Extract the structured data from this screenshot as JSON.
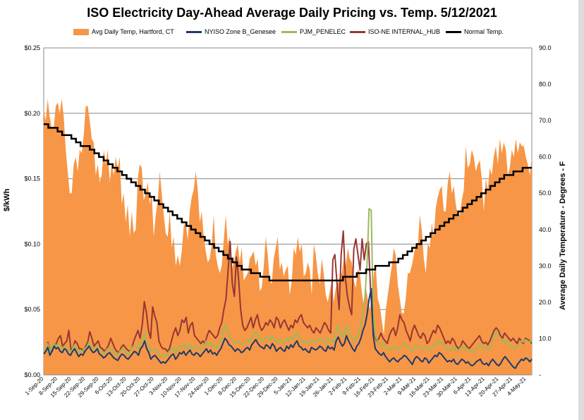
{
  "chart_data": {
    "type": "line",
    "title": "ISO Electricity Day-Ahead Average Daily Pricing vs. Temp. 5/12/2021",
    "ylabel_left": "$/kWh",
    "ylabel_right": "Average Daily Temperature - Degrees - F",
    "ylim_left": [
      0,
      0.25
    ],
    "ylim_right": [
      0,
      90
    ],
    "left_ticks": [
      "$0.00",
      "$0.05",
      "$0.10",
      "$0.15",
      "$0.20",
      "$0.25"
    ],
    "right_ticks": [
      "-",
      "10.0",
      "20.0",
      "30.0",
      "40.0",
      "50.0",
      "60.0",
      "70.0",
      "80.0",
      "90.0"
    ],
    "x_labels": [
      "1-Sep-20",
      "8-Sep-20",
      "15-Sep-20",
      "22-Sep-20",
      "29-Sep-20",
      "6-Oct-20",
      "13-Oct-20",
      "20-Oct-20",
      "27-Oct-20",
      "3-Nov-20",
      "10-Nov-20",
      "17-Nov-20",
      "24-Nov-20",
      "1-Dec-20",
      "8-Dec-20",
      "15-Dec-20",
      "22-Dec-20",
      "29-Dec-20",
      "5-Jan-21",
      "12-Jan-21",
      "19-Jan-21",
      "26-Jan-21",
      "2-Feb-21",
      "9-Feb-21",
      "16-Feb-21",
      "23-Feb-21",
      "2-Mar-21",
      "9-Mar-21",
      "16-Mar-21",
      "23-Mar-21",
      "30-Mar-21",
      "6-Apr-21",
      "13-Apr-21",
      "20-Apr-21",
      "27-Apr-21",
      "4-May-21"
    ],
    "grid": "horizontal",
    "legend_position": "top",
    "colors": {
      "temp": "#f79646",
      "nyiso": "#1f3a68",
      "pjm": "#9bbb59",
      "isone": "#953735",
      "normal": "#000000"
    },
    "series": [
      {
        "name": "Avg Daily Temp, Hartford, CT",
        "axis": "right",
        "kind": "area",
        "values": [
          73,
          70,
          76,
          71,
          68,
          68,
          74,
          75,
          72,
          76,
          71,
          62,
          56,
          50,
          50,
          58,
          60,
          56,
          62,
          61,
          66,
          74,
          74,
          70,
          65,
          64,
          55,
          58,
          53,
          55,
          62,
          58,
          62,
          53,
          58,
          55,
          60,
          57,
          60,
          47,
          50,
          42,
          47,
          38,
          45,
          39,
          40,
          54,
          58,
          57,
          48,
          50,
          53,
          47,
          50,
          38,
          44,
          48,
          56,
          50,
          44,
          39,
          38,
          45,
          35,
          38,
          30,
          33,
          30,
          34,
          41,
          42,
          37,
          45,
          49,
          51,
          56,
          51,
          42,
          45,
          38,
          34,
          31,
          32,
          36,
          44,
          33,
          30,
          28,
          30,
          37,
          44,
          36,
          38,
          29,
          31,
          34,
          36,
          31,
          35,
          26,
          27,
          28,
          32,
          33,
          34,
          30,
          32,
          23,
          24,
          30,
          38,
          33,
          26,
          25,
          32,
          35,
          38,
          29,
          31,
          27,
          29,
          30,
          22,
          26,
          35,
          33,
          38,
          34,
          36,
          27,
          28,
          31,
          29,
          22,
          36,
          33,
          28,
          25,
          32,
          28,
          22,
          20,
          23,
          26,
          20,
          24,
          25,
          27,
          28,
          32,
          30,
          35,
          32,
          31,
          26,
          24,
          29,
          28,
          23,
          19,
          24,
          21,
          18,
          21,
          28,
          30,
          21,
          19,
          15,
          11,
          18,
          22,
          26,
          30,
          35,
          33,
          25,
          21,
          17,
          17,
          21,
          28,
          28,
          30,
          33,
          36,
          35,
          44,
          40,
          32,
          28,
          36,
          35,
          42,
          38,
          46,
          49,
          51,
          52,
          45,
          45,
          53,
          56,
          50,
          52,
          47,
          44,
          44,
          48,
          51,
          63,
          57,
          58,
          62,
          60,
          56,
          58,
          59,
          54,
          45,
          54,
          51,
          57,
          55,
          60,
          63,
          58,
          65,
          61,
          64,
          62,
          55,
          57,
          62,
          60,
          65,
          61,
          64,
          63,
          63,
          60,
          58,
          55,
          60
        ],
        "source_note": "values in degrees F"
      },
      {
        "name": "NYISO Zone B_Genesee",
        "axis": "left",
        "kind": "line"
      },
      {
        "name": "PJM_PENELEC",
        "axis": "left",
        "kind": "line"
      },
      {
        "name": "ISO-NE INTERNAL_HUB",
        "axis": "left",
        "kind": "line"
      },
      {
        "name": "Normal Temp.",
        "axis": "right",
        "kind": "line"
      }
    ],
    "price_series": {
      "nyiso": [
        0.016,
        0.018,
        0.021,
        0.015,
        0.018,
        0.022,
        0.02,
        0.021,
        0.018,
        0.017,
        0.02,
        0.019,
        0.016,
        0.015,
        0.018,
        0.02,
        0.017,
        0.014,
        0.016,
        0.015,
        0.018,
        0.02,
        0.022,
        0.019,
        0.017,
        0.018,
        0.02,
        0.016,
        0.015,
        0.013,
        0.014,
        0.016,
        0.017,
        0.015,
        0.013,
        0.012,
        0.011,
        0.014,
        0.016,
        0.015,
        0.013,
        0.012,
        0.014,
        0.016,
        0.018,
        0.017,
        0.015,
        0.02,
        0.022,
        0.026,
        0.02,
        0.017,
        0.012,
        0.014,
        0.015,
        0.013,
        0.011,
        0.009,
        0.01,
        0.009,
        0.011,
        0.013,
        0.015,
        0.016,
        0.012,
        0.014,
        0.017,
        0.016,
        0.018,
        0.015,
        0.017,
        0.019,
        0.016,
        0.015,
        0.017,
        0.016,
        0.014,
        0.016,
        0.018,
        0.02,
        0.017,
        0.019,
        0.016,
        0.017,
        0.015,
        0.018,
        0.02,
        0.024,
        0.028,
        0.026,
        0.023,
        0.022,
        0.02,
        0.018,
        0.02,
        0.019,
        0.017,
        0.018,
        0.02,
        0.021,
        0.019,
        0.023,
        0.025,
        0.027,
        0.024,
        0.022,
        0.021,
        0.02,
        0.023,
        0.022,
        0.02,
        0.024,
        0.022,
        0.018,
        0.02,
        0.021,
        0.019,
        0.018,
        0.022,
        0.02,
        0.023,
        0.021,
        0.024,
        0.026,
        0.022,
        0.021,
        0.019,
        0.02,
        0.018,
        0.017,
        0.021,
        0.02,
        0.019,
        0.02,
        0.022,
        0.021,
        0.019,
        0.018,
        0.022,
        0.02,
        0.021,
        0.019,
        0.026,
        0.029,
        0.025,
        0.022,
        0.024,
        0.03,
        0.026,
        0.023,
        0.02,
        0.018,
        0.022,
        0.024,
        0.028,
        0.034,
        0.038,
        0.046,
        0.058,
        0.066,
        0.03,
        0.02,
        0.018,
        0.016,
        0.015,
        0.017,
        0.014,
        0.012,
        0.01,
        0.012,
        0.013,
        0.011,
        0.01,
        0.012,
        0.013,
        0.015,
        0.014,
        0.012,
        0.01,
        0.008,
        0.012,
        0.014,
        0.013,
        0.011,
        0.01,
        0.013,
        0.012,
        0.009,
        0.011,
        0.013,
        0.015,
        0.014,
        0.017,
        0.016,
        0.014,
        0.012,
        0.01,
        0.011,
        0.01,
        0.012,
        0.009,
        0.008,
        0.01,
        0.012,
        0.011,
        0.009,
        0.01,
        0.008,
        0.007,
        0.008,
        0.01,
        0.011,
        0.012,
        0.009,
        0.008,
        0.009,
        0.007,
        0.01,
        0.012,
        0.01,
        0.008,
        0.007,
        0.009,
        0.012,
        0.014,
        0.012,
        0.01,
        0.008,
        0.006,
        0.005,
        0.008,
        0.01,
        0.012,
        0.011,
        0.013,
        0.012,
        0.01,
        0.012
      ],
      "pjm": [
        0.018,
        0.02,
        0.024,
        0.018,
        0.021,
        0.024,
        0.022,
        0.023,
        0.021,
        0.02,
        0.022,
        0.021,
        0.019,
        0.017,
        0.02,
        0.023,
        0.02,
        0.017,
        0.019,
        0.018,
        0.02,
        0.022,
        0.025,
        0.022,
        0.02,
        0.021,
        0.022,
        0.019,
        0.018,
        0.016,
        0.018,
        0.02,
        0.021,
        0.019,
        0.017,
        0.016,
        0.015,
        0.018,
        0.02,
        0.019,
        0.017,
        0.016,
        0.018,
        0.021,
        0.023,
        0.022,
        0.02,
        0.025,
        0.028,
        0.032,
        0.026,
        0.022,
        0.018,
        0.019,
        0.02,
        0.018,
        0.016,
        0.014,
        0.015,
        0.014,
        0.016,
        0.018,
        0.02,
        0.021,
        0.017,
        0.019,
        0.022,
        0.021,
        0.023,
        0.02,
        0.022,
        0.024,
        0.021,
        0.02,
        0.022,
        0.021,
        0.019,
        0.021,
        0.023,
        0.026,
        0.023,
        0.025,
        0.021,
        0.022,
        0.021,
        0.024,
        0.026,
        0.032,
        0.038,
        0.034,
        0.03,
        0.028,
        0.026,
        0.024,
        0.026,
        0.025,
        0.023,
        0.024,
        0.026,
        0.027,
        0.025,
        0.029,
        0.031,
        0.033,
        0.03,
        0.028,
        0.027,
        0.026,
        0.029,
        0.028,
        0.026,
        0.03,
        0.028,
        0.024,
        0.026,
        0.027,
        0.025,
        0.024,
        0.028,
        0.026,
        0.029,
        0.027,
        0.03,
        0.032,
        0.028,
        0.027,
        0.025,
        0.026,
        0.024,
        0.023,
        0.027,
        0.026,
        0.025,
        0.026,
        0.028,
        0.027,
        0.025,
        0.024,
        0.028,
        0.026,
        0.027,
        0.025,
        0.033,
        0.038,
        0.032,
        0.029,
        0.031,
        0.038,
        0.034,
        0.03,
        0.027,
        0.025,
        0.029,
        0.032,
        0.038,
        0.048,
        0.06,
        0.085,
        0.127,
        0.126,
        0.045,
        0.03,
        0.026,
        0.024,
        0.022,
        0.025,
        0.022,
        0.02,
        0.019,
        0.021,
        0.022,
        0.02,
        0.019,
        0.021,
        0.022,
        0.024,
        0.023,
        0.021,
        0.019,
        0.018,
        0.021,
        0.023,
        0.022,
        0.02,
        0.019,
        0.022,
        0.021,
        0.019,
        0.02,
        0.022,
        0.024,
        0.023,
        0.026,
        0.025,
        0.023,
        0.021,
        0.019,
        0.02,
        0.019,
        0.022,
        0.019,
        0.018,
        0.02,
        0.022,
        0.021,
        0.019,
        0.02,
        0.018,
        0.017,
        0.018,
        0.02,
        0.022,
        0.024,
        0.021,
        0.02,
        0.021,
        0.019,
        0.022,
        0.025,
        0.032,
        0.034,
        0.03,
        0.028,
        0.026,
        0.024,
        0.027,
        0.024,
        0.022,
        0.021,
        0.02,
        0.022,
        0.024,
        0.026,
        0.025,
        0.027,
        0.026,
        0.025,
        0.027
      ],
      "isone": [
        0.016,
        0.018,
        0.025,
        0.019,
        0.018,
        0.022,
        0.024,
        0.028,
        0.03,
        0.022,
        0.024,
        0.026,
        0.034,
        0.019,
        0.021,
        0.026,
        0.024,
        0.02,
        0.02,
        0.018,
        0.022,
        0.025,
        0.033,
        0.028,
        0.022,
        0.024,
        0.026,
        0.021,
        0.02,
        0.018,
        0.02,
        0.023,
        0.028,
        0.024,
        0.02,
        0.018,
        0.017,
        0.021,
        0.023,
        0.021,
        0.019,
        0.018,
        0.02,
        0.026,
        0.03,
        0.034,
        0.028,
        0.038,
        0.056,
        0.048,
        0.034,
        0.028,
        0.052,
        0.045,
        0.04,
        0.026,
        0.022,
        0.02,
        0.02,
        0.018,
        0.02,
        0.026,
        0.032,
        0.036,
        0.03,
        0.034,
        0.042,
        0.04,
        0.044,
        0.032,
        0.038,
        0.04,
        0.03,
        0.028,
        0.026,
        0.024,
        0.026,
        0.024,
        0.03,
        0.034,
        0.032,
        0.03,
        0.028,
        0.03,
        0.036,
        0.04,
        0.05,
        0.058,
        0.08,
        0.102,
        0.07,
        0.06,
        0.09,
        0.074,
        0.05,
        0.038,
        0.034,
        0.036,
        0.04,
        0.044,
        0.036,
        0.042,
        0.046,
        0.038,
        0.034,
        0.036,
        0.04,
        0.038,
        0.042,
        0.04,
        0.036,
        0.044,
        0.042,
        0.036,
        0.04,
        0.042,
        0.038,
        0.034,
        0.038,
        0.036,
        0.042,
        0.04,
        0.044,
        0.046,
        0.04,
        0.038,
        0.036,
        0.038,
        0.034,
        0.032,
        0.036,
        0.034,
        0.032,
        0.036,
        0.04,
        0.038,
        0.034,
        0.032,
        0.088,
        0.092,
        0.07,
        0.05,
        0.092,
        0.11,
        0.074,
        0.06,
        0.052,
        0.046,
        0.096,
        0.104,
        0.092,
        0.08,
        0.104,
        0.088,
        0.1,
        0.102,
        0.066,
        0.04,
        0.03,
        0.026,
        0.028,
        0.032,
        0.028,
        0.026,
        0.024,
        0.03,
        0.034,
        0.036,
        0.03,
        0.036,
        0.046,
        0.042,
        0.04,
        0.034,
        0.03,
        0.026,
        0.034,
        0.038,
        0.034,
        0.03,
        0.028,
        0.032,
        0.03,
        0.024,
        0.026,
        0.03,
        0.034,
        0.032,
        0.038,
        0.036,
        0.032,
        0.028,
        0.024,
        0.026,
        0.024,
        0.028,
        0.026,
        0.022,
        0.02,
        0.022,
        0.026,
        0.024,
        0.022,
        0.02,
        0.022,
        0.024,
        0.026,
        0.028,
        0.03,
        0.026,
        0.024,
        0.025,
        0.023,
        0.026,
        0.03,
        0.034,
        0.036,
        0.034,
        0.03,
        0.028,
        0.032,
        0.03,
        0.028,
        0.026,
        0.028,
        0.026,
        0.024,
        0.028,
        0.026,
        0.024,
        0.028,
        0.027,
        0.026,
        0.024
      ]
    },
    "normal_temp": [
      69,
      68,
      68,
      67,
      66,
      66,
      65,
      64,
      63,
      63,
      62,
      61,
      60,
      59,
      58,
      57,
      56,
      55,
      54,
      53,
      52,
      51,
      50,
      49,
      48,
      47,
      46,
      45,
      44,
      43,
      42,
      41,
      40,
      39,
      38,
      37,
      36,
      35,
      34,
      33,
      32,
      31,
      30,
      29,
      29,
      28,
      28,
      27,
      27,
      26,
      26,
      26,
      26,
      26,
      26,
      26,
      26,
      26,
      26,
      26,
      26,
      26,
      26,
      26,
      26,
      27,
      27,
      27,
      28,
      28,
      29,
      29,
      30,
      30,
      30,
      31,
      31,
      32,
      33,
      34,
      35,
      36,
      37,
      38,
      39,
      40,
      41,
      42,
      43,
      44,
      45,
      46,
      47,
      48,
      49,
      50,
      51,
      52,
      53,
      54,
      55,
      55,
      56,
      56,
      57,
      57
    ]
  }
}
